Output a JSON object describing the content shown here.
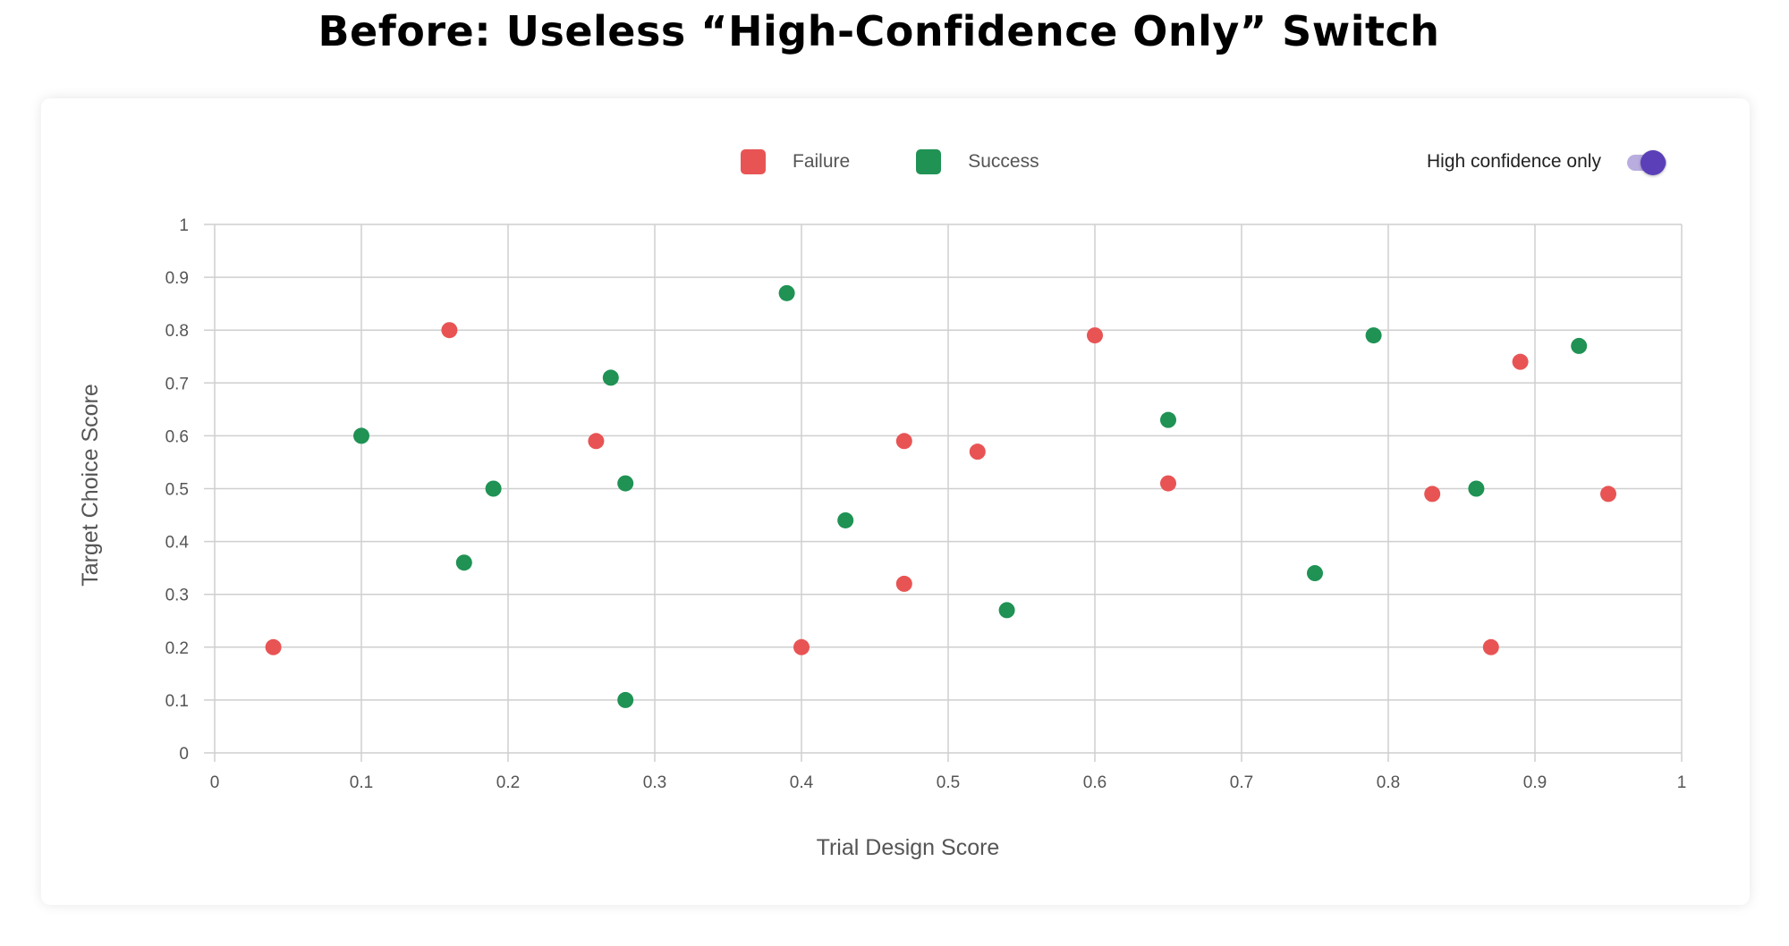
{
  "title": "Before: Useless “High-Confidence Only” Switch",
  "toggle": {
    "label": "High confidence only",
    "on": true,
    "track_color": "#b9addf",
    "thumb_color": "#5b3fb8"
  },
  "chart_data": {
    "type": "scatter",
    "xlabel": "Trial Design Score",
    "ylabel": "Target Choice Score",
    "xlim": [
      0,
      1
    ],
    "ylim": [
      0,
      1
    ],
    "xticks": [
      "0",
      "0.1",
      "0.2",
      "0.3",
      "0.4",
      "0.5",
      "0.6",
      "0.7",
      "0.8",
      "0.9",
      "1"
    ],
    "yticks": [
      "0",
      "0.1",
      "0.2",
      "0.3",
      "0.4",
      "0.5",
      "0.6",
      "0.7",
      "0.8",
      "0.9",
      "1"
    ],
    "grid": true,
    "legend_position": "top-center",
    "series": [
      {
        "name": "Failure",
        "color": "#e85454",
        "points": [
          {
            "x": 0.04,
            "y": 0.2
          },
          {
            "x": 0.16,
            "y": 0.8
          },
          {
            "x": 0.26,
            "y": 0.59
          },
          {
            "x": 0.4,
            "y": 0.2
          },
          {
            "x": 0.47,
            "y": 0.59
          },
          {
            "x": 0.47,
            "y": 0.32
          },
          {
            "x": 0.52,
            "y": 0.57
          },
          {
            "x": 0.6,
            "y": 0.79
          },
          {
            "x": 0.65,
            "y": 0.51
          },
          {
            "x": 0.83,
            "y": 0.49
          },
          {
            "x": 0.87,
            "y": 0.2
          },
          {
            "x": 0.89,
            "y": 0.74
          },
          {
            "x": 0.95,
            "y": 0.49
          }
        ]
      },
      {
        "name": "Success",
        "color": "#1f9254",
        "points": [
          {
            "x": 0.1,
            "y": 0.6
          },
          {
            "x": 0.17,
            "y": 0.36
          },
          {
            "x": 0.19,
            "y": 0.5
          },
          {
            "x": 0.27,
            "y": 0.71
          },
          {
            "x": 0.28,
            "y": 0.51
          },
          {
            "x": 0.28,
            "y": 0.1
          },
          {
            "x": 0.39,
            "y": 0.87
          },
          {
            "x": 0.43,
            "y": 0.44
          },
          {
            "x": 0.54,
            "y": 0.27
          },
          {
            "x": 0.65,
            "y": 0.63
          },
          {
            "x": 0.75,
            "y": 0.34
          },
          {
            "x": 0.79,
            "y": 0.79
          },
          {
            "x": 0.86,
            "y": 0.5
          },
          {
            "x": 0.93,
            "y": 0.77
          }
        ]
      }
    ]
  }
}
